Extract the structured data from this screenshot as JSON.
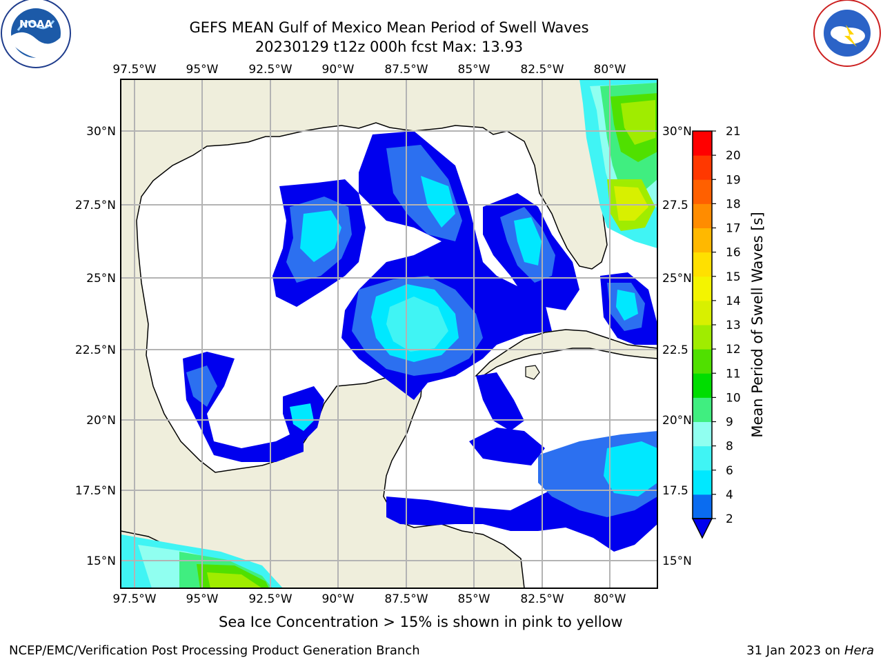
{
  "header": {
    "title_line1": "GEFS MEAN Gulf of Mexico Mean Period of Swell Waves",
    "title_line2": "20230129 t12z 000h fcst   Max: 13.93"
  },
  "logos": {
    "left": {
      "name": "NOAA",
      "ring_text": "NATIONAL OCEANIC AND ATMOSPHERIC ADMINISTRATION · U.S. DEPARTMENT OF COMMERCE"
    },
    "right": {
      "ring_text": "NATIONAL WEATHER SERVICE"
    }
  },
  "map": {
    "lon_labels": [
      "97.5°W",
      "95°W",
      "92.5°W",
      "90°W",
      "87.5°W",
      "85°W",
      "82.5°W",
      "80°W"
    ],
    "lat_labels_left": [
      "30°N",
      "27.5°N",
      "25°N",
      "22.5°N",
      "20°N",
      "17.5°N",
      "15°N"
    ],
    "lat_labels_right": [
      "30°N",
      "27.5",
      "25°N",
      "22.5",
      "20°N",
      "17.5",
      "15°N"
    ],
    "colors": {
      "land": "#efeedc",
      "grid": "#b3b3b3",
      "coast": "#000000",
      "ocean": "#ffffff"
    }
  },
  "colorbar": {
    "label": "Mean Period of Swell Waves [s]",
    "ticks": [
      "2",
      "4",
      "6",
      "8",
      "9",
      "10",
      "11",
      "12",
      "13",
      "14",
      "15",
      "16",
      "17",
      "18",
      "19",
      "20",
      "21"
    ],
    "colors": [
      "#0a6cf0",
      "#00e8ff",
      "#40f4f4",
      "#90fff0",
      "#40ee80",
      "#00dd00",
      "#50e000",
      "#a0ec00",
      "#d8f000",
      "#f4f400",
      "#ffe000",
      "#ffb800",
      "#ff8c00",
      "#ff6000",
      "#ff3800",
      "#ff0000"
    ],
    "extend_color": "#0000ee"
  },
  "footer": {
    "note": "Sea Ice Concentration > 15% is shown in pink to yellow",
    "left": "NCEP/EMC/Verification Post Processing Product Generation Branch",
    "right_prefix": "31 Jan 2023 on ",
    "right_italic": "Hera"
  }
}
